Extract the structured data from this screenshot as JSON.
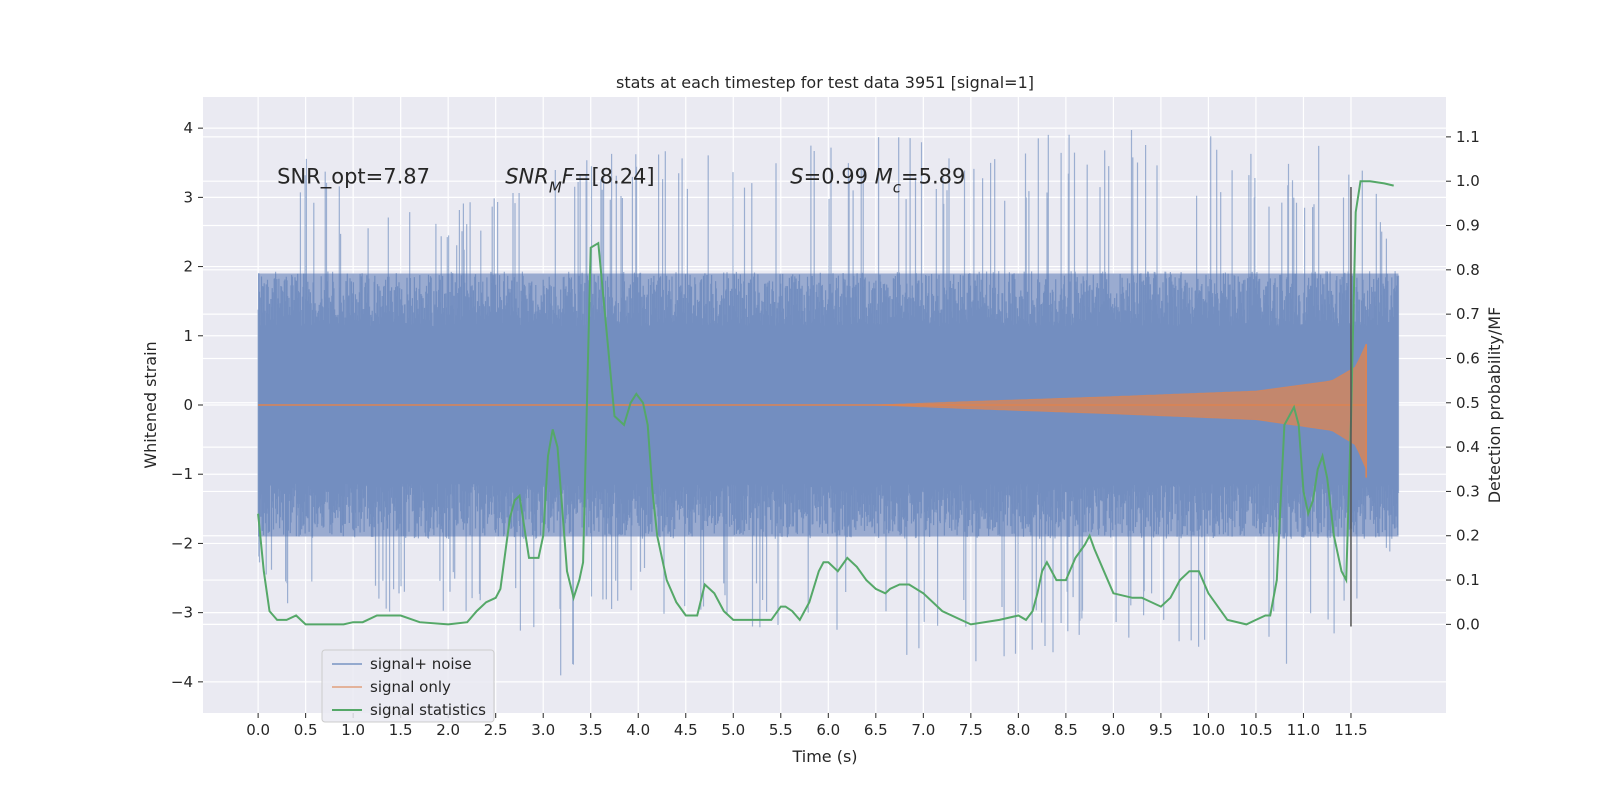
{
  "chart_data": {
    "type": "line",
    "title": "stats at each timestep for test data 3951 [signal=1]",
    "xlabel": "Time (s)",
    "ylabel_left": "Whitened strain",
    "ylabel_right": "Detection probability/MF",
    "xlim": [
      -0.58,
      12.5
    ],
    "ylim_left": [
      -4.45,
      4.45
    ],
    "ylim_right": [
      -0.2,
      1.19
    ],
    "xticks": [
      0.0,
      0.5,
      1.0,
      1.5,
      2.0,
      2.5,
      3.0,
      3.5,
      4.0,
      4.5,
      5.0,
      5.5,
      6.0,
      6.5,
      7.0,
      7.5,
      8.0,
      8.5,
      9.0,
      9.5,
      10.0,
      10.5,
      11.0,
      11.5
    ],
    "xtick_labels": [
      "0.0",
      "0.5",
      "1.0",
      "1.5",
      "2.0",
      "2.5",
      "3.0",
      "3.5",
      "4.0",
      "4.5",
      "5.0",
      "5.5",
      "6.0",
      "6.5",
      "7.0",
      "7.5",
      "8.0",
      "8.5",
      "9.0",
      "9.5",
      "10.0",
      "10.5",
      "11.0",
      "11.5"
    ],
    "yticks_left": [
      -4,
      -3,
      -2,
      -1,
      0,
      1,
      2,
      3,
      4
    ],
    "ytick_labels_left": [
      "−4",
      "−3",
      "−2",
      "−1",
      "0",
      "1",
      "2",
      "3",
      "4"
    ],
    "yticks_right": [
      0.0,
      0.1,
      0.2,
      0.3,
      0.4,
      0.5,
      0.6,
      0.7,
      0.8,
      0.9,
      1.0,
      1.1
    ],
    "ytick_labels_right": [
      "0.0",
      "0.1",
      "0.2",
      "0.3",
      "0.4",
      "0.5",
      "0.6",
      "0.7",
      "0.8",
      "0.9",
      "1.0",
      "1.1"
    ],
    "grid": true,
    "legend_position": "lower-left",
    "series": [
      {
        "name": "signal+ noise",
        "color": "#4c72b0",
        "axis": "left",
        "x_range": [
          0.0,
          12.0
        ],
        "core_amplitude": 1.9,
        "peak_envelope": [
          [
            0.0,
            2.2
          ],
          [
            0.3,
            3.5
          ],
          [
            0.4,
            4.0
          ],
          [
            1.0,
            3.0
          ],
          [
            2.0,
            2.9
          ],
          [
            3.5,
            3.6
          ],
          [
            5.0,
            4.05
          ],
          [
            7.5,
            3.85
          ],
          [
            9.5,
            4.05
          ],
          [
            11.0,
            3.7
          ],
          [
            11.6,
            3.9
          ],
          [
            12.0,
            2.0
          ]
        ],
        "trough_envelope": [
          [
            0.0,
            -2.6
          ],
          [
            0.7,
            -3.3
          ],
          [
            1.0,
            -3.4
          ],
          [
            2.0,
            -3.0
          ],
          [
            3.0,
            -3.6
          ],
          [
            3.25,
            -4.05
          ],
          [
            4.0,
            -3.0
          ],
          [
            6.0,
            -3.5
          ],
          [
            7.9,
            -3.8
          ],
          [
            9.0,
            -3.4
          ],
          [
            11.1,
            -3.8
          ],
          [
            11.6,
            -3.2
          ],
          [
            12.0,
            -2.0
          ]
        ]
      },
      {
        "name": "signal only",
        "color": "#dd8452",
        "axis": "left",
        "x_range": [
          0.0,
          11.66
        ],
        "envelope": [
          [
            0.0,
            0.0
          ],
          [
            6.5,
            0.0
          ],
          [
            7.5,
            0.05
          ],
          [
            9.0,
            0.12
          ],
          [
            10.5,
            0.2
          ],
          [
            11.3,
            0.35
          ],
          [
            11.55,
            0.55
          ],
          [
            11.66,
            0.88
          ]
        ],
        "end_value": -1.05
      },
      {
        "name": "signal statistics",
        "color": "#55a868",
        "axis": "right",
        "x": [
          0.0,
          0.06,
          0.12,
          0.2,
          0.3,
          0.4,
          0.5,
          0.7,
          0.9,
          1.0,
          1.1,
          1.25,
          1.35,
          1.5,
          1.7,
          2.0,
          2.2,
          2.3,
          2.4,
          2.5,
          2.55,
          2.65,
          2.7,
          2.75,
          2.85,
          2.95,
          3.0,
          3.05,
          3.1,
          3.15,
          3.25,
          3.32,
          3.38,
          3.42,
          3.5,
          3.58,
          3.65,
          3.75,
          3.85,
          3.92,
          3.98,
          4.05,
          4.1,
          4.15,
          4.2,
          4.3,
          4.4,
          4.5,
          4.62,
          4.7,
          4.8,
          4.9,
          5.0,
          5.2,
          5.4,
          5.5,
          5.55,
          5.62,
          5.7,
          5.8,
          5.9,
          5.95,
          6.0,
          6.1,
          6.2,
          6.3,
          6.4,
          6.5,
          6.6,
          6.65,
          6.75,
          6.85,
          7.0,
          7.2,
          7.5,
          7.8,
          8.0,
          8.08,
          8.15,
          8.2,
          8.25,
          8.3,
          8.4,
          8.5,
          8.6,
          8.7,
          8.75,
          8.8,
          8.9,
          9.0,
          9.2,
          9.3,
          9.5,
          9.6,
          9.7,
          9.8,
          9.9,
          10.0,
          10.2,
          10.4,
          10.5,
          10.6,
          10.65,
          10.72,
          10.8,
          10.9,
          10.95,
          11.0,
          11.05,
          11.1,
          11.15,
          11.2,
          11.25,
          11.32,
          11.4,
          11.45,
          11.5,
          11.55,
          11.6,
          11.7,
          11.85,
          11.95
        ],
        "y": [
          0.25,
          0.12,
          0.03,
          0.01,
          0.01,
          0.02,
          0.0,
          0.0,
          0.0,
          0.005,
          0.005,
          0.02,
          0.02,
          0.02,
          0.005,
          0.0,
          0.005,
          0.03,
          0.05,
          0.06,
          0.08,
          0.24,
          0.28,
          0.29,
          0.15,
          0.15,
          0.2,
          0.38,
          0.44,
          0.4,
          0.12,
          0.06,
          0.1,
          0.14,
          0.85,
          0.86,
          0.7,
          0.47,
          0.45,
          0.5,
          0.52,
          0.5,
          0.45,
          0.3,
          0.2,
          0.1,
          0.05,
          0.02,
          0.02,
          0.09,
          0.07,
          0.03,
          0.01,
          0.01,
          0.01,
          0.04,
          0.04,
          0.03,
          0.01,
          0.05,
          0.12,
          0.14,
          0.14,
          0.12,
          0.15,
          0.13,
          0.1,
          0.08,
          0.07,
          0.08,
          0.09,
          0.09,
          0.07,
          0.03,
          0.0,
          0.01,
          0.02,
          0.01,
          0.03,
          0.07,
          0.12,
          0.14,
          0.1,
          0.1,
          0.15,
          0.18,
          0.2,
          0.17,
          0.12,
          0.07,
          0.06,
          0.06,
          0.04,
          0.06,
          0.1,
          0.12,
          0.12,
          0.07,
          0.01,
          0.0,
          0.01,
          0.02,
          0.02,
          0.1,
          0.45,
          0.49,
          0.45,
          0.3,
          0.25,
          0.28,
          0.35,
          0.38,
          0.33,
          0.2,
          0.12,
          0.1,
          0.46,
          0.93,
          1.0,
          1.0,
          0.995,
          0.99
        ]
      }
    ],
    "vertical_line": {
      "x": 11.5,
      "y_left_range": [
        -3.2,
        3.15
      ],
      "color": "#555555"
    },
    "annotations": [
      {
        "parts": [
          {
            "text": "SNR_opt=7.87",
            "italic": false
          }
        ],
        "x": 0.2,
        "y": 3.2
      },
      {
        "parts": [
          {
            "text": "SNR",
            "italic": true
          },
          {
            "text": "M",
            "italic": true,
            "sub": true
          },
          {
            "text": "F",
            "italic": true
          },
          {
            "text": "=[8.24]",
            "italic": false
          }
        ],
        "x": 2.6,
        "y": 3.2
      },
      {
        "parts": [
          {
            "text": "S",
            "italic": true
          },
          {
            "text": "=0.99   ",
            "italic": false
          },
          {
            "text": "M",
            "italic": true
          },
          {
            "text": "c",
            "italic": true,
            "sub": true
          },
          {
            "text": "=5.89",
            "italic": false
          }
        ],
        "x": 5.6,
        "y": 3.2
      }
    ],
    "legend": [
      {
        "label": "signal+ noise",
        "color": "#4c72b0"
      },
      {
        "label": "signal only",
        "color": "#dd8452"
      },
      {
        "label": "signal statistics",
        "color": "#55a868"
      }
    ]
  }
}
